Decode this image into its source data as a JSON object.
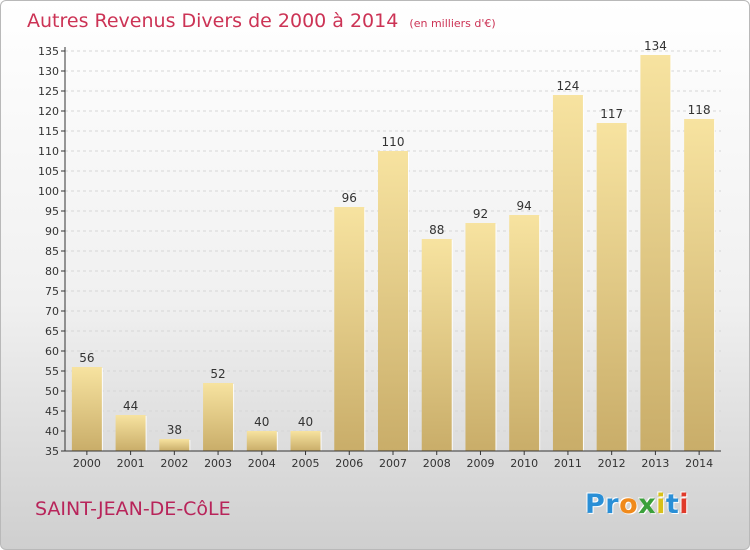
{
  "title": "Autres Revenus Divers de 2000 à 2014",
  "unit_note": "(en milliers d'€)",
  "place": "SAINT-JEAN-DE-CôLE",
  "logo": {
    "text": "Proxiti",
    "letters": [
      {
        "ch": "P",
        "color": "#2a8fd6"
      },
      {
        "ch": "r",
        "color": "#2a8fd6"
      },
      {
        "ch": "o",
        "color": "#f08a1c"
      },
      {
        "ch": "x",
        "color": "#3aa03a"
      },
      {
        "ch": "i",
        "color": "#d8c01a"
      },
      {
        "ch": "t",
        "color": "#2a8fd6"
      },
      {
        "ch": "i",
        "color": "#e03a2a"
      }
    ]
  },
  "colors": {
    "title": "#cc3355",
    "bar_top": "#f7e3a0",
    "bar_bottom": "#c9ad69",
    "grid": "#d6d6d6",
    "axis": "#333333",
    "label": "#333333"
  },
  "chart_data": {
    "type": "bar",
    "title": "Autres Revenus Divers de 2000 à 2014",
    "xlabel": "",
    "ylabel": "",
    "categories": [
      "2000",
      "2001",
      "2002",
      "2003",
      "2004",
      "2005",
      "2006",
      "2007",
      "2008",
      "2009",
      "2010",
      "2011",
      "2012",
      "2013",
      "2014"
    ],
    "values": [
      56,
      44,
      38,
      52,
      40,
      40,
      96,
      110,
      88,
      92,
      94,
      124,
      117,
      134,
      118
    ],
    "ylim": [
      35,
      135
    ],
    "yticks": [
      35,
      40,
      45,
      50,
      55,
      60,
      65,
      70,
      75,
      80,
      85,
      90,
      95,
      100,
      105,
      110,
      115,
      120,
      125,
      130,
      135
    ],
    "grid": true,
    "legend": "none"
  }
}
